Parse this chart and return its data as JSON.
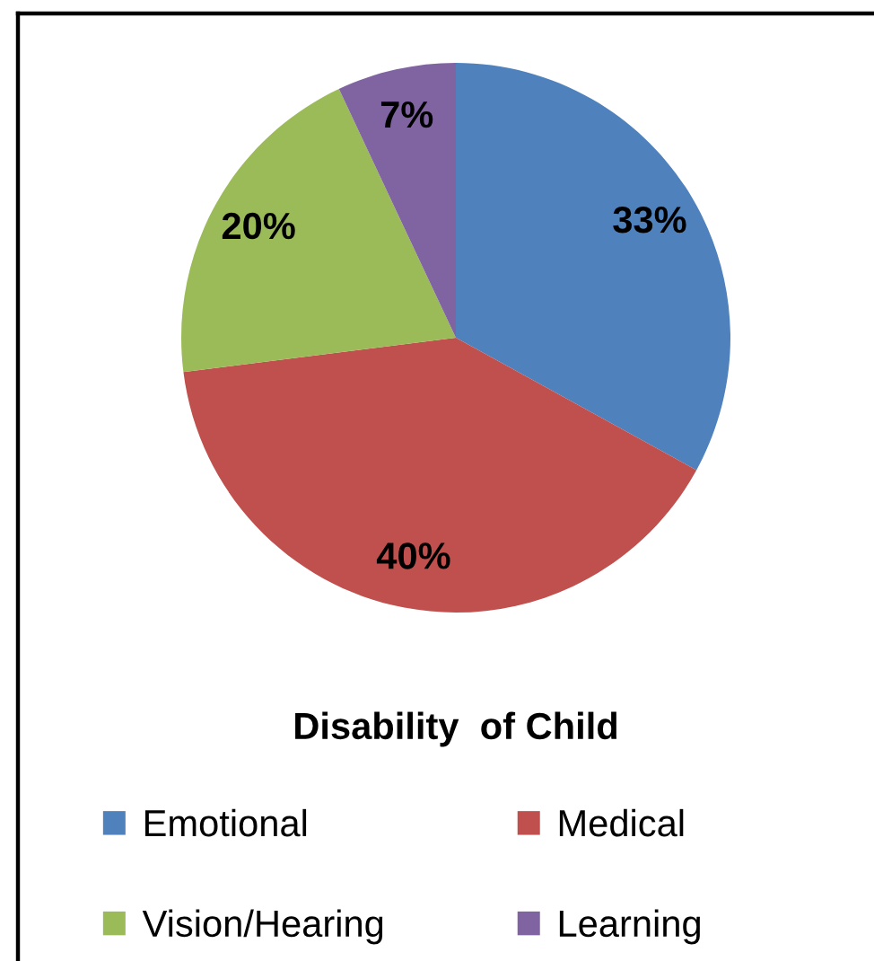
{
  "chart_data": {
    "type": "pie",
    "title": "Disability  of Child",
    "categories": [
      "Emotional",
      "Medical",
      "Vision/Hearing",
      "Learning"
    ],
    "values": [
      33,
      40,
      20,
      7
    ],
    "colors": [
      "#4f81bd",
      "#c0504d",
      "#9bbb59",
      "#8064a2"
    ],
    "value_labels": [
      "33%",
      "40%",
      "20%",
      "7%"
    ],
    "legend": "bottom"
  }
}
